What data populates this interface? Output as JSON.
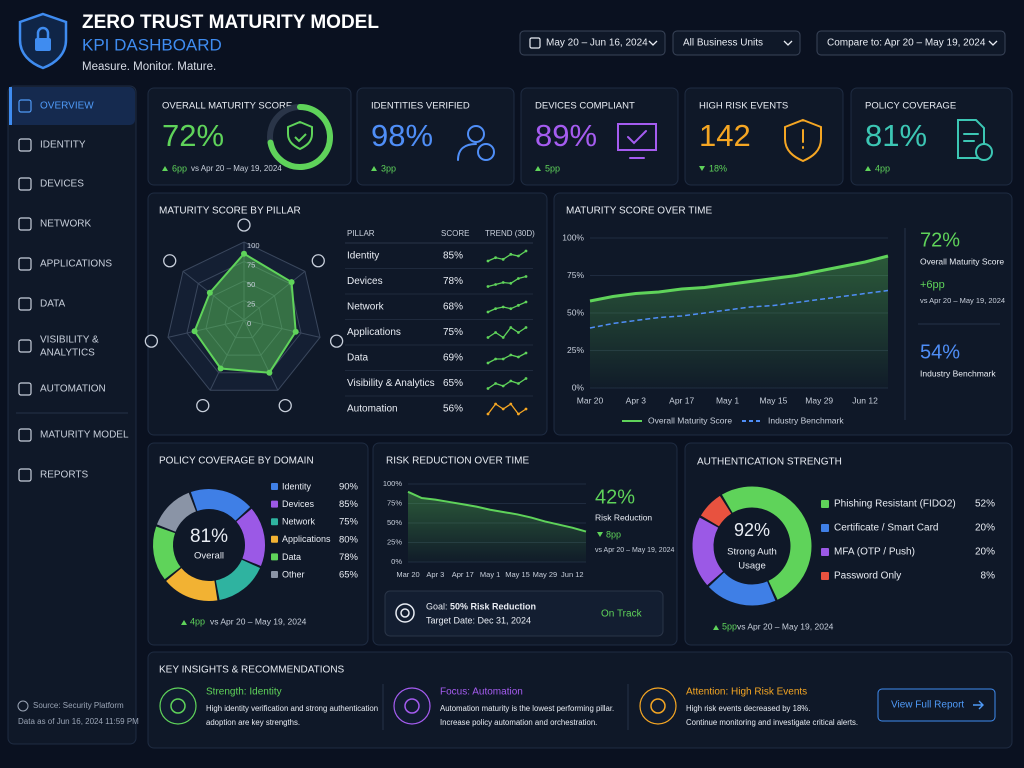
{
  "header": {
    "title": "ZERO TRUST MATURITY MODEL",
    "subtitle": "KPI DASHBOARD",
    "tagline": "Measure. Monitor. Mature.",
    "filters": [
      "May 20 – Jun 16, 2024",
      "All Business Units",
      "Compare to: Apr 20 – May 19, 2024"
    ]
  },
  "nav": {
    "items": [
      "OVERVIEW",
      "IDENTITY",
      "DEVICES",
      "NETWORK",
      "APPLICATIONS",
      "DATA",
      [
        "VISIBILITY &",
        "ANALYTICS"
      ],
      "AUTOMATION",
      "MATURITY MODEL",
      "REPORTS"
    ],
    "active": 0,
    "source": "Source: Security Platform",
    "updated": "Data as of Jun 16, 2024 11:59 PM"
  },
  "kpis": [
    {
      "title": "OVERALL MATURITY SCORE",
      "value": 72,
      "value_label": "72%",
      "delta": "6pp",
      "delta_dir": "up",
      "compare": "vs Apr 20 – May 19, 2024",
      "color": "#5fd35a"
    },
    {
      "title": "IDENTITIES VERIFIED",
      "value": 98,
      "value_label": "98%",
      "delta": "3pp",
      "delta_dir": "up",
      "color": "#4f8ef7"
    },
    {
      "title": "DEVICES COMPLIANT",
      "value": 89,
      "value_label": "89%",
      "delta": "5pp",
      "delta_dir": "up",
      "color": "#a55cf0"
    },
    {
      "title": "HIGH RISK EVENTS",
      "value": 142,
      "delta": "18%",
      "delta_dir": "down",
      "color": "#f5a623"
    },
    {
      "title": "POLICY COVERAGE",
      "value": 81,
      "value_label": "81%",
      "delta": "4pp",
      "delta_dir": "up",
      "color": "#3cc6b4"
    }
  ],
  "pillars": {
    "type": "radar",
    "title": "MATURITY SCORE BY PILLAR",
    "columns": [
      "PILLAR",
      "SCORE",
      "TREND (30D)"
    ],
    "rlim": [
      0,
      100
    ],
    "rticks": [
      100,
      75,
      50,
      25,
      0
    ],
    "color": "#5fd35a",
    "rows": [
      {
        "name": "Identity",
        "score": 85,
        "score_label": "85%",
        "trend": [
          2,
          3,
          2.5,
          4,
          3.5,
          5
        ],
        "trend_color": "#5fd35a"
      },
      {
        "name": "Devices",
        "score": 78,
        "score_label": "78%",
        "trend": [
          2,
          2.5,
          3,
          2.8,
          4,
          4.5
        ],
        "trend_color": "#5fd35a"
      },
      {
        "name": "Network",
        "score": 68,
        "score_label": "68%",
        "trend": [
          1,
          2,
          2.5,
          2,
          3,
          4
        ],
        "trend_color": "#5fd35a"
      },
      {
        "name": "Applications",
        "score": 75,
        "score_label": "75%",
        "trend": [
          3,
          3.5,
          3,
          4,
          3.5,
          4
        ],
        "trend_color": "#5fd35a"
      },
      {
        "name": "Data",
        "score": 69,
        "score_label": "69%",
        "trend": [
          2,
          3,
          3,
          4,
          3.5,
          4.5
        ],
        "trend_color": "#5fd35a"
      },
      {
        "name": "Visibility & Analytics",
        "score": 65,
        "score_label": "65%",
        "trend": [
          2,
          3,
          2.5,
          3.5,
          3,
          4
        ],
        "trend_color": "#5fd35a"
      },
      {
        "name": "Automation",
        "score": 56,
        "score_label": "56%",
        "trend": [
          3,
          4,
          3.5,
          4,
          3,
          3.5
        ],
        "trend_color": "#f5a623"
      }
    ]
  },
  "timeline": {
    "type": "line",
    "title": "MATURITY SCORE OVER TIME",
    "categories": [
      "Mar 20",
      null,
      "Apr 3",
      null,
      "Apr 17",
      null,
      "May 1",
      null,
      "May 15",
      null,
      "May 29",
      null,
      "Jun 12",
      null
    ],
    "series": [
      {
        "name": "Overall Maturity Score",
        "color": "#5fd35a",
        "values": [
          58,
          61,
          63,
          64,
          66,
          67,
          69,
          71,
          73,
          75,
          78,
          81,
          84,
          88
        ]
      },
      {
        "name": "Industry Benchmark",
        "color": "#4f8ef7",
        "dashed": true,
        "values": [
          40,
          43,
          45,
          47,
          48,
          50,
          52,
          54,
          55,
          57,
          59,
          61,
          63,
          65
        ]
      }
    ],
    "ylim": [
      0,
      100
    ],
    "yticks": [
      {
        "value": 0,
        "label": "0%"
      },
      {
        "value": 25,
        "label": "25%"
      },
      {
        "value": 50,
        "label": "50%"
      },
      {
        "value": 75,
        "label": "75%"
      },
      {
        "value": 100,
        "label": "100%"
      }
    ],
    "grid": true,
    "summary": {
      "score": "72%",
      "score_label": "Overall Maturity Score",
      "delta": "+6pp",
      "compare": "vs Apr 20 – May 19, 2024",
      "benchmark": "54%",
      "benchmark_label": "Industry Benchmark"
    }
  },
  "policy": {
    "type": "donut",
    "title": "POLICY COVERAGE BY DOMAIN",
    "categories": [
      "Identity",
      "Devices",
      "Network",
      "Applications",
      "Data",
      "Other"
    ],
    "values": [
      90,
      85,
      75,
      80,
      78,
      65
    ],
    "value_labels": [
      "90%",
      "85%",
      "75%",
      "80%",
      "78%",
      "65%"
    ],
    "colors": [
      "#3f7fe6",
      "#9b59e6",
      "#2fb3a0",
      "#f2b233",
      "#5fd35a",
      "#8a94a6"
    ],
    "center_value": "81%",
    "center_label": "Overall",
    "delta": "4pp",
    "compare": "vs Apr 20 – May 19, 2024"
  },
  "risk": {
    "type": "area",
    "title": "RISK REDUCTION OVER TIME",
    "categories": [
      "Mar 20",
      null,
      "Apr 3",
      null,
      "Apr 17",
      null,
      "May 1",
      null,
      "May 15",
      null,
      "May 29",
      null,
      "Jun 12",
      null
    ],
    "values": [
      90,
      82,
      80,
      77,
      74,
      71,
      67,
      64,
      61,
      57,
      52,
      48,
      44,
      39
    ],
    "color": "#5fd35a",
    "ylim": [
      0,
      100
    ],
    "yticks": [
      {
        "value": 0,
        "label": "0%"
      },
      {
        "value": 25,
        "label": "25%"
      },
      {
        "value": 50,
        "label": "50%"
      },
      {
        "value": 75,
        "label": "75%"
      },
      {
        "value": 100,
        "label": "100%"
      }
    ],
    "headline": "42%",
    "headline_label": "Risk Reduction",
    "delta": "8pp",
    "compare": "vs Apr 20 – May 19, 2024",
    "goal": {
      "label": "Goal:",
      "target": "50% Risk Reduction",
      "date": "Target Date: Dec 31, 2024",
      "status": "On Track"
    }
  },
  "auth": {
    "type": "donut",
    "title": "AUTHENTICATION STRENGTH",
    "categories": [
      "Phishing Resistant (FIDO2)",
      "Certificate / Smart Card",
      "MFA (OTP / Push)",
      "Password Only"
    ],
    "values": [
      52,
      20,
      20,
      8
    ],
    "value_labels": [
      "52%",
      "20%",
      "20%",
      "8%"
    ],
    "colors": [
      "#5fd35a",
      "#3f7fe6",
      "#9b59e6",
      "#e8523f"
    ],
    "center_value": "92%",
    "center_label": [
      "Strong Auth",
      "Usage"
    ],
    "delta": "5pp",
    "compare": "vs Apr 20 – May 19, 2024"
  },
  "insights": {
    "title": "KEY INSIGHTS & RECOMMENDATIONS",
    "button": "View Full Report",
    "items": [
      {
        "title": "Strength: Identity",
        "text": [
          "High identity verification and strong authentication",
          "adoption are key strengths."
        ],
        "color": "#5fd35a"
      },
      {
        "title": "Focus: Automation",
        "text": [
          "Automation maturity is the lowest performing pillar.",
          "Increase policy automation and orchestration."
        ],
        "color": "#a55cf0"
      },
      {
        "title": "Attention: High Risk Events",
        "text": [
          "High risk events decreased by 18%.",
          "Continue monitoring and investigate critical alerts."
        ],
        "color": "#f5a623"
      }
    ]
  }
}
